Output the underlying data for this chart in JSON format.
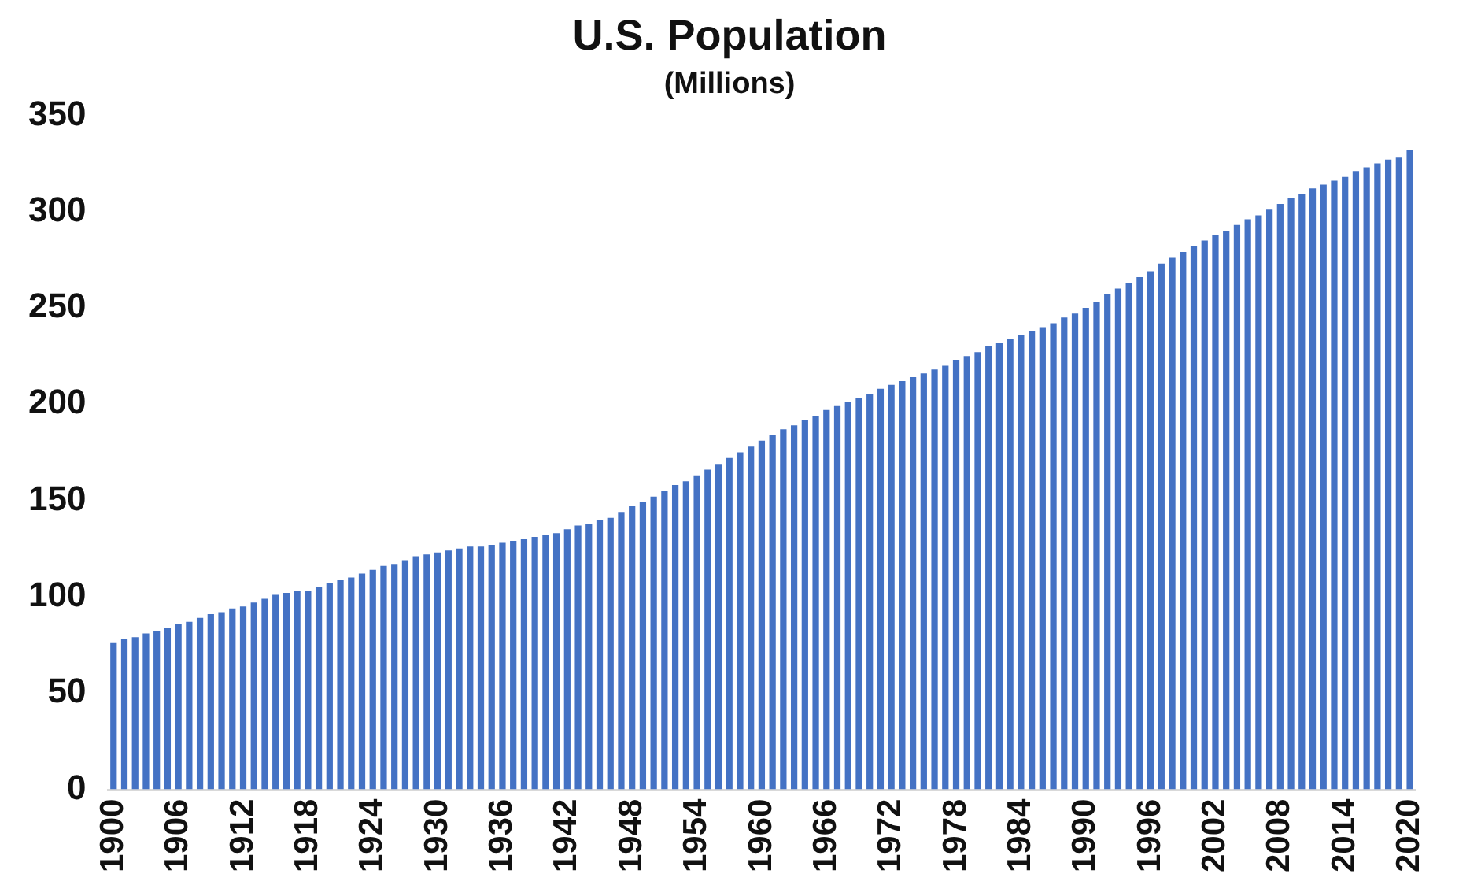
{
  "chart_data": {
    "type": "bar",
    "title": "U.S. Population",
    "subtitle": "(Millions)",
    "categories": [
      "1900",
      null,
      null,
      null,
      null,
      null,
      "1906",
      null,
      null,
      null,
      null,
      null,
      "1912",
      null,
      null,
      null,
      null,
      null,
      "1918",
      null,
      null,
      null,
      null,
      null,
      "1924",
      null,
      null,
      null,
      null,
      null,
      "1930",
      null,
      null,
      null,
      null,
      null,
      "1936",
      null,
      null,
      null,
      null,
      null,
      "1942",
      null,
      null,
      null,
      null,
      null,
      "1948",
      null,
      null,
      null,
      null,
      null,
      "1954",
      null,
      null,
      null,
      null,
      null,
      "1960",
      null,
      null,
      null,
      null,
      null,
      "1966",
      null,
      null,
      null,
      null,
      null,
      "1972",
      null,
      null,
      null,
      null,
      null,
      "1978",
      null,
      null,
      null,
      null,
      null,
      "1984",
      null,
      null,
      null,
      null,
      null,
      "1990",
      null,
      null,
      null,
      null,
      null,
      "1996",
      null,
      null,
      null,
      null,
      null,
      "2002",
      null,
      null,
      null,
      null,
      null,
      "2008",
      null,
      null,
      null,
      null,
      null,
      "2014",
      null,
      null,
      null,
      null,
      null,
      "2020"
    ],
    "values": [
      76,
      78,
      79,
      81,
      82,
      84,
      86,
      87,
      89,
      91,
      92,
      94,
      95,
      97,
      99,
      101,
      102,
      103,
      103,
      105,
      107,
      109,
      110,
      112,
      114,
      116,
      117,
      119,
      121,
      122,
      123,
      124,
      125,
      126,
      126,
      127,
      128,
      129,
      130,
      131,
      132,
      133,
      135,
      137,
      138,
      140,
      141,
      144,
      147,
      149,
      152,
      155,
      158,
      160,
      163,
      166,
      169,
      172,
      175,
      178,
      181,
      184,
      187,
      189,
      192,
      194,
      197,
      199,
      201,
      203,
      205,
      208,
      210,
      212,
      214,
      216,
      218,
      220,
      223,
      225,
      227,
      230,
      232,
      234,
      236,
      238,
      240,
      242,
      245,
      247,
      250,
      253,
      257,
      260,
      263,
      266,
      269,
      273,
      276,
      279,
      282,
      285,
      288,
      290,
      293,
      296,
      298,
      301,
      304,
      307,
      309,
      312,
      314,
      316,
      318,
      321,
      323,
      325,
      327,
      328,
      332
    ],
    "color": "#4472c4",
    "ylim": [
      0,
      350
    ],
    "yticks": [
      0,
      50,
      100,
      150,
      200,
      250,
      300,
      350
    ],
    "grid": false,
    "legend": false
  }
}
